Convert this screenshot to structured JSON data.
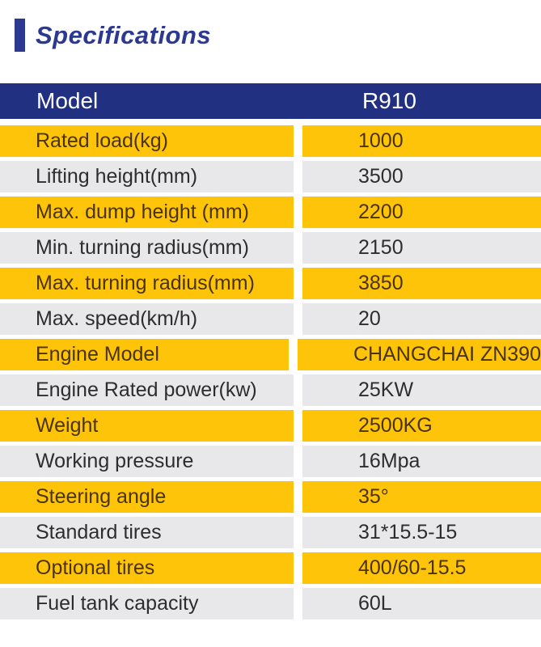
{
  "heading": {
    "title": "Specifications",
    "accent_color": "#2b3990"
  },
  "table": {
    "header": {
      "model_label": "Model",
      "model_value": "R910",
      "bg_color": "#213080",
      "text_color": "#ffffff"
    },
    "colors": {
      "yellow_row_bg": "#fdc40a",
      "yellow_row_text": "#4b3309",
      "gray_row_bg": "#e8e8ea",
      "gray_row_text": "#2d2d2d"
    },
    "rows": [
      {
        "label": "Rated load(kg)",
        "value": "1000"
      },
      {
        "label": "Lifting height(mm)",
        "value": "3500"
      },
      {
        "label": "Max. dump height (mm)",
        "value": "2200"
      },
      {
        "label": "Min. turning radius(mm)",
        "value": "2150"
      },
      {
        "label": "Max. turning radius(mm)",
        "value": "3850"
      },
      {
        "label": "Max. speed(km/h)",
        "value": "20"
      },
      {
        "label": "Engine Model",
        "value": "CHANGCHAI ZN390"
      },
      {
        "label": "Engine Rated power(kw)",
        "value": "25KW"
      },
      {
        "label": "Weight",
        "value": "2500KG"
      },
      {
        "label": "Working pressure",
        "value": "16Mpa"
      },
      {
        "label": "Steering angle",
        "value": "35°"
      },
      {
        "label": "Standard tires",
        "value": "31*15.5-15"
      },
      {
        "label": "Optional tires",
        "value": "400/60-15.5"
      },
      {
        "label": "Fuel tank capacity",
        "value": "60L"
      }
    ]
  }
}
